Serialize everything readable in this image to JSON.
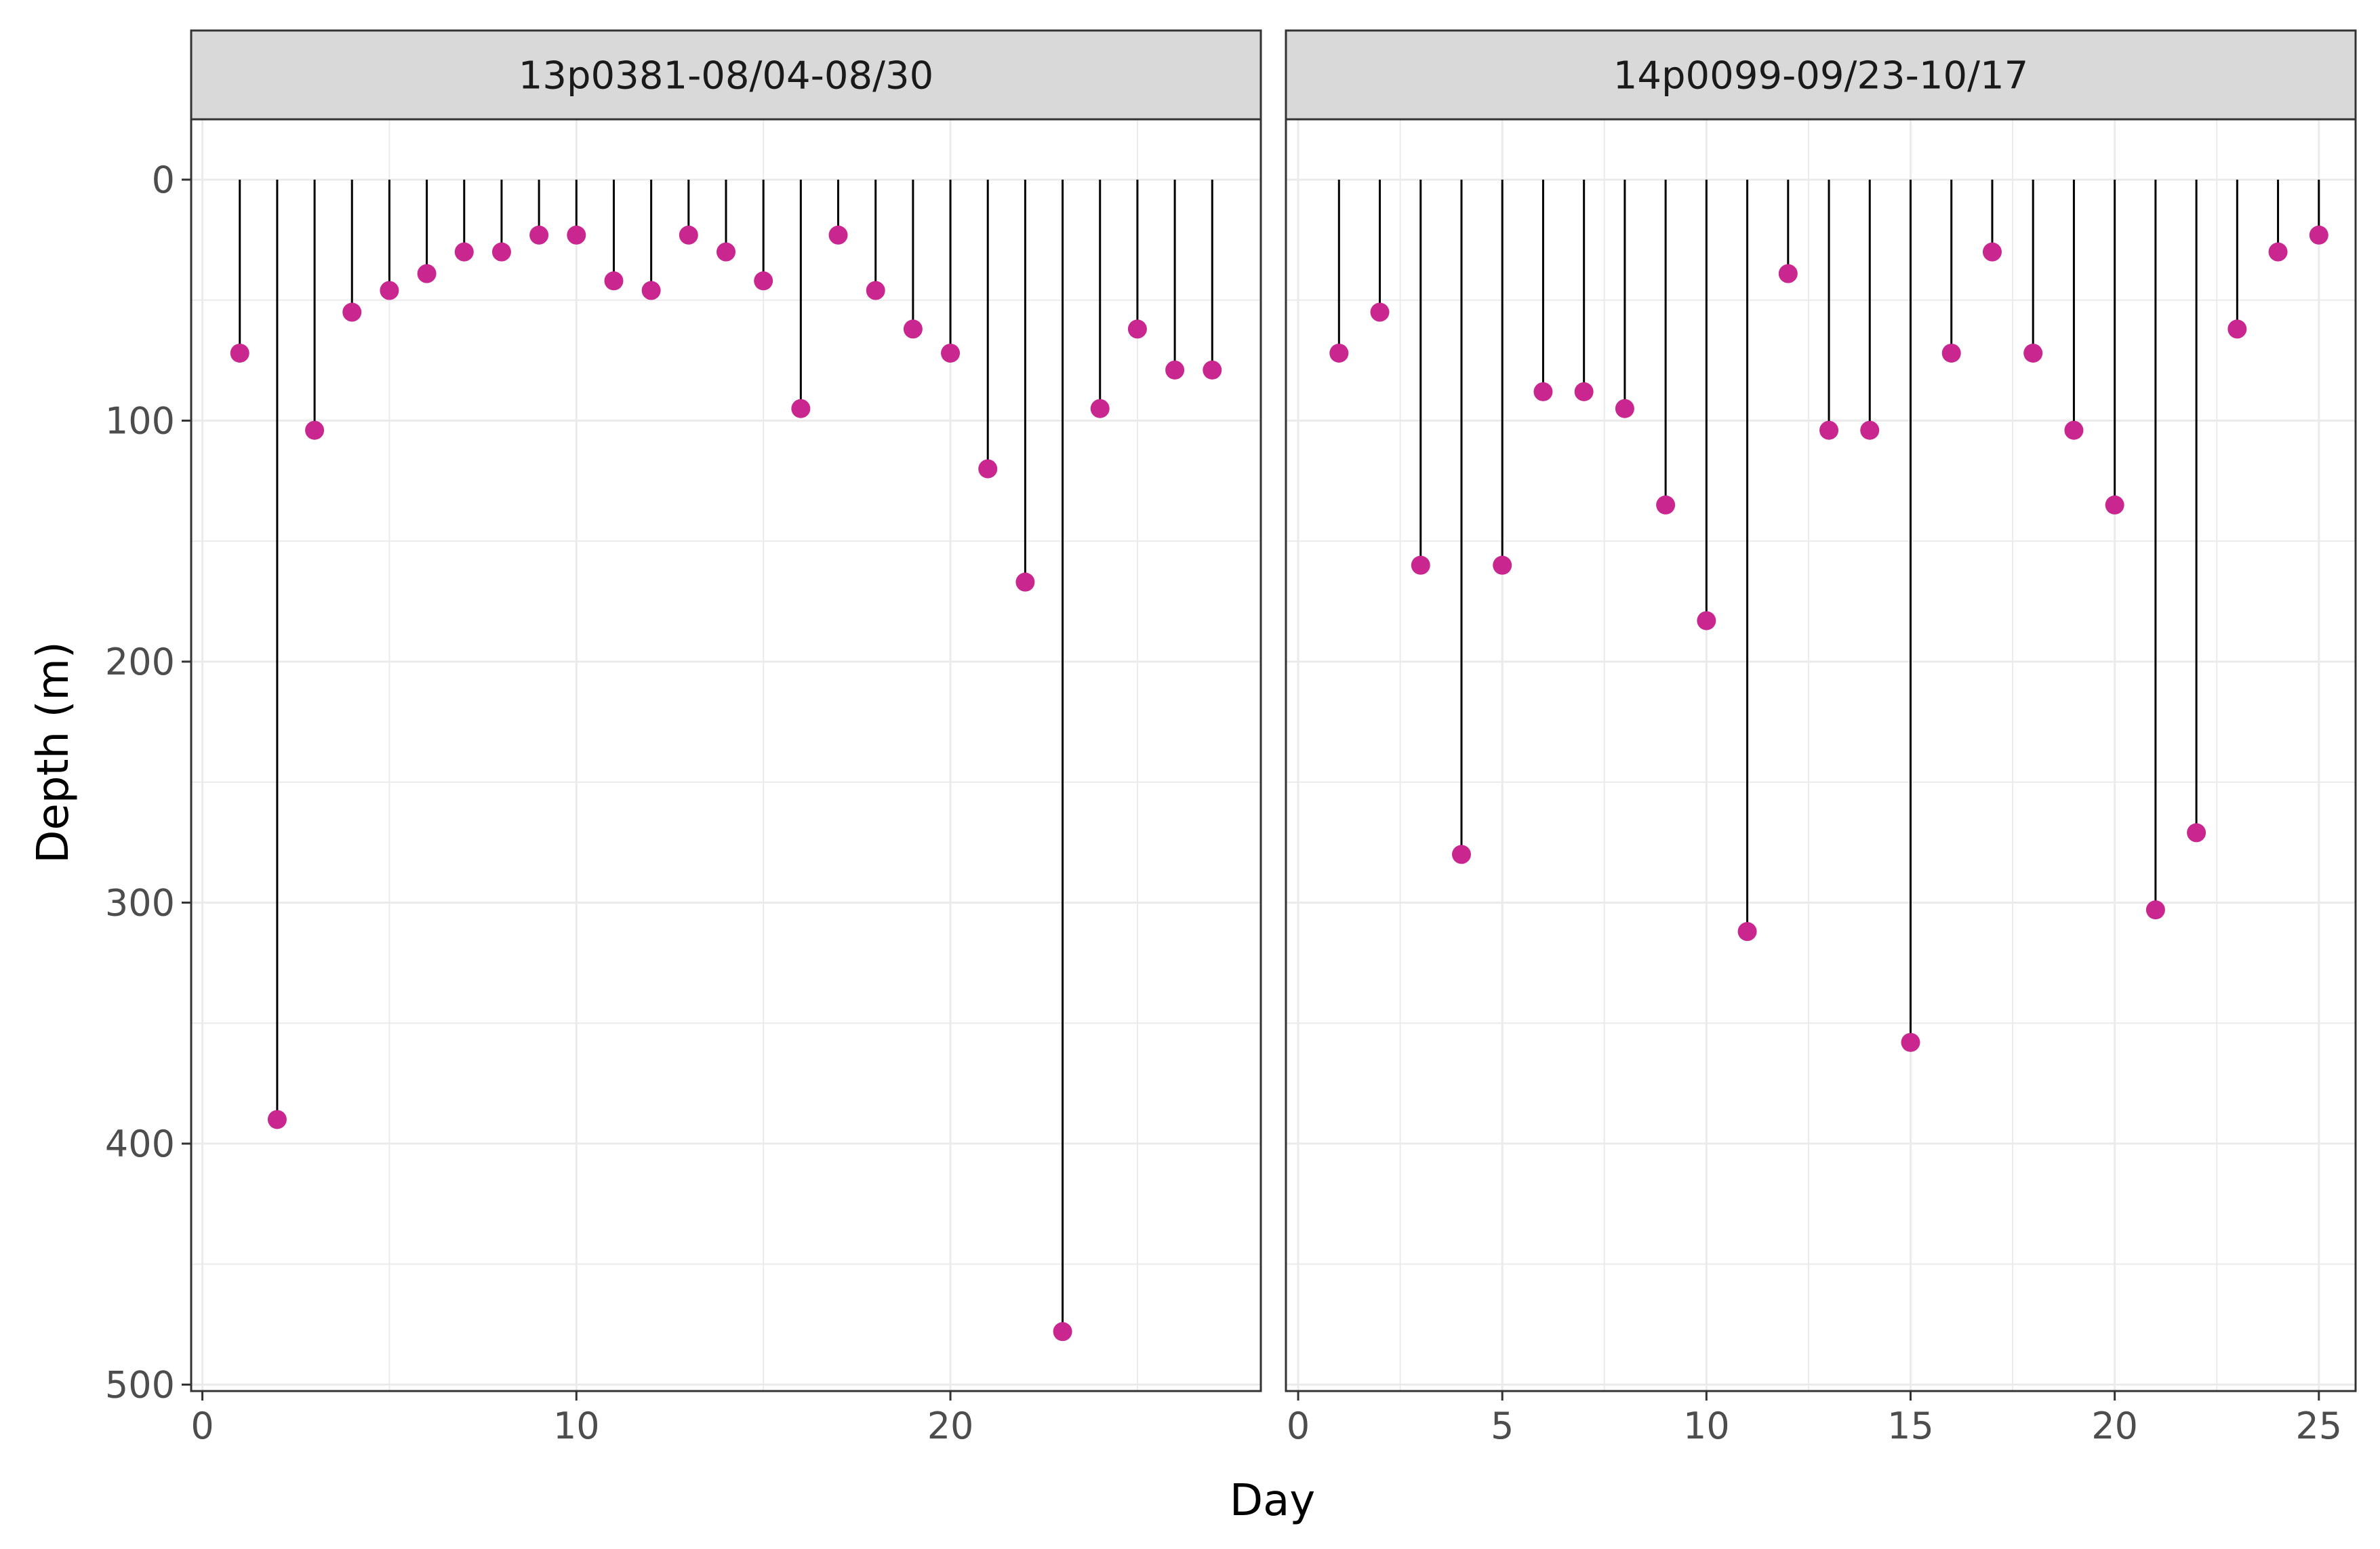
{
  "chart_data": {
    "type": "scatter",
    "style": "lollipop (vertical stem from depth 0 to each point)",
    "xlabel": "Day",
    "ylabel": "Depth (m)",
    "y_reversed": true,
    "ylim": [
      0,
      500
    ],
    "y_ticks": [
      0,
      100,
      200,
      300,
      400,
      500
    ],
    "grid": true,
    "legend": "none",
    "colors": {
      "point": "#C9278F",
      "stem": "#000000",
      "strip_bg": "#D9D9D9",
      "grid": "#EBEBEB",
      "border": "#333333"
    },
    "panels": [
      {
        "strip": "13p0381-08/04-08/30",
        "xlim": [
          -0.3,
          28.3
        ],
        "x_ticks": [
          0,
          10,
          20
        ],
        "x": [
          1,
          2,
          3,
          4,
          5,
          6,
          7,
          8,
          9,
          10,
          11,
          12,
          13,
          14,
          15,
          16,
          17,
          18,
          19,
          20,
          21,
          22,
          23,
          24,
          25,
          26,
          27
        ],
        "y": [
          72,
          390,
          104,
          55,
          46,
          39,
          30,
          30,
          23,
          23,
          42,
          46,
          23,
          30,
          42,
          95,
          23,
          46,
          62,
          72,
          120,
          167,
          478,
          95,
          62,
          79,
          79
        ]
      },
      {
        "strip": "14p0099-09/23-10/17",
        "xlim": [
          -0.3,
          25.9
        ],
        "x_ticks": [
          0,
          5,
          10,
          15,
          20,
          25
        ],
        "x": [
          1,
          2,
          3,
          4,
          5,
          6,
          7,
          8,
          9,
          10,
          11,
          12,
          13,
          14,
          15,
          16,
          17,
          18,
          19,
          20,
          21,
          22,
          23,
          24,
          25
        ],
        "y": [
          72,
          55,
          160,
          280,
          160,
          88,
          88,
          95,
          135,
          183,
          312,
          39,
          104,
          104,
          358,
          72,
          30,
          72,
          104,
          135,
          303,
          271,
          62,
          30,
          23
        ]
      }
    ]
  }
}
